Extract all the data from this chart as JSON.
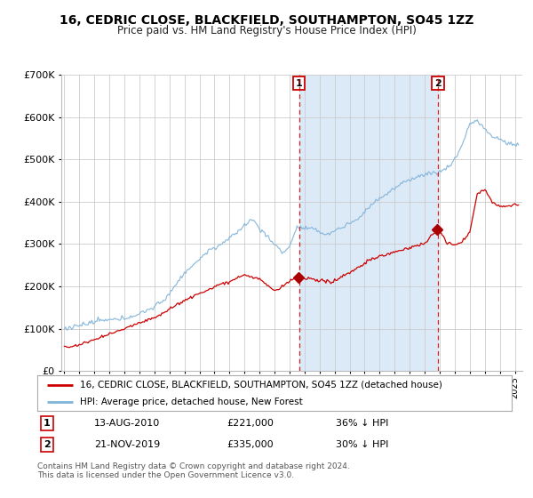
{
  "title": "16, CEDRIC CLOSE, BLACKFIELD, SOUTHAMPTON, SO45 1ZZ",
  "subtitle": "Price paid vs. HM Land Registry's House Price Index (HPI)",
  "red_label": "16, CEDRIC CLOSE, BLACKFIELD, SOUTHAMPTON, SO45 1ZZ (detached house)",
  "blue_label": "HPI: Average price, detached house, New Forest",
  "sale1_date": "13-AUG-2010",
  "sale1_price": 221000,
  "sale1_pct": "36% ↓ HPI",
  "sale1_label": "1",
  "sale1_year": 2010.625,
  "sale2_date": "21-NOV-2019",
  "sale2_price": 335000,
  "sale2_pct": "30% ↓ HPI",
  "sale2_label": "2",
  "sale2_year": 2019.875,
  "footer": "Contains HM Land Registry data © Crown copyright and database right 2024.\nThis data is licensed under the Open Government Licence v3.0.",
  "ylim": [
    0,
    700000
  ],
  "yticks": [
    0,
    100000,
    200000,
    300000,
    400000,
    500000,
    600000,
    700000
  ],
  "xlim_start": 1994.8,
  "xlim_end": 2025.5,
  "plot_bg": "#ffffff",
  "shade_color": "#dce9f7",
  "red_color": "#cc0000",
  "blue_color": "#7fb3d9",
  "grid_color": "#cccccc",
  "grid_color_minor": "#e0e0e0"
}
